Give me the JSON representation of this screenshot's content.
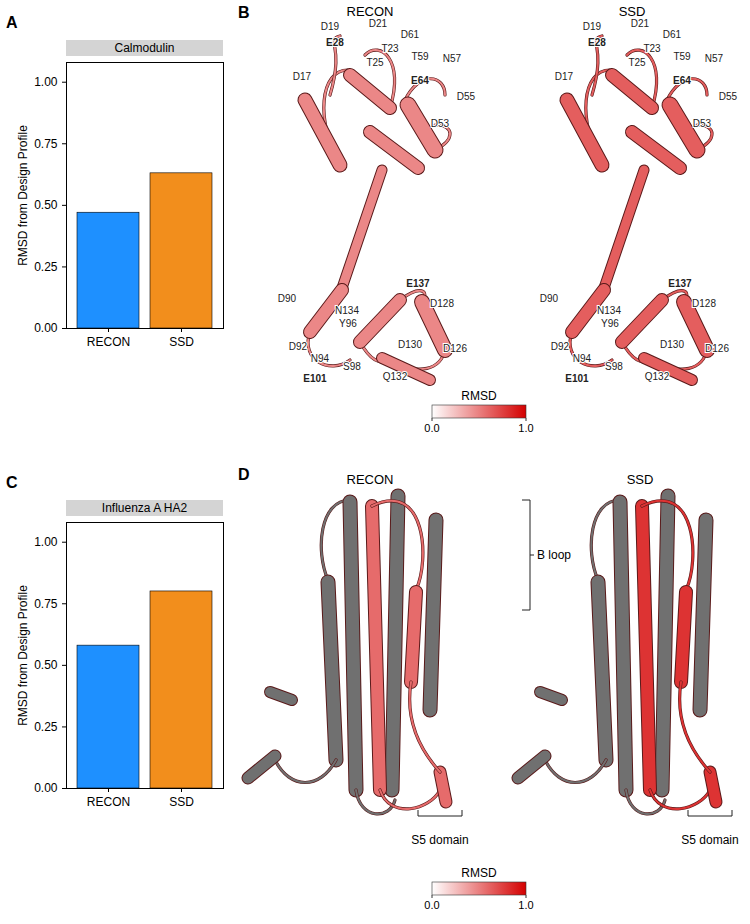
{
  "chart_data": [
    {
      "type": "bar",
      "panel": "A",
      "title": "Calmodulin",
      "y_label": "RMSD from Design Profile",
      "categories": [
        "RECON",
        "SSD"
      ],
      "values": [
        0.47,
        0.63
      ],
      "colors": [
        "#1e90ff",
        "#f28e1c"
      ],
      "ylim": [
        0,
        1.08
      ],
      "yticks": [
        {
          "value": 0,
          "label": "0.00"
        },
        {
          "value": 0.25,
          "label": "0.25"
        },
        {
          "value": 0.5,
          "label": "0.50"
        },
        {
          "value": 0.75,
          "label": "0.75"
        },
        {
          "value": 1,
          "label": "1.00"
        }
      ]
    },
    {
      "type": "bar",
      "panel": "C",
      "title": "Influenza A HA2",
      "y_label": "RMSD from Design Profile",
      "categories": [
        "RECON",
        "SSD"
      ],
      "values": [
        0.58,
        0.8
      ],
      "colors": [
        "#1e90ff",
        "#f28e1c"
      ],
      "ylim": [
        0,
        1.08
      ],
      "yticks": [
        {
          "value": 0,
          "label": "0.00"
        },
        {
          "value": 0.25,
          "label": "0.25"
        },
        {
          "value": 0.5,
          "label": "0.50"
        },
        {
          "value": 0.75,
          "label": "0.75"
        },
        {
          "value": 1,
          "label": "1.00"
        }
      ]
    }
  ],
  "structures": [
    {
      "panel": "B",
      "titles": [
        "RECON",
        "SSD"
      ],
      "residue_labels": [
        {
          "label": "D19",
          "bold": false
        },
        {
          "label": "D21",
          "bold": false
        },
        {
          "label": "D61",
          "bold": false
        },
        {
          "label": "E28",
          "bold": true
        },
        {
          "label": "T23",
          "bold": false
        },
        {
          "label": "T59",
          "bold": false
        },
        {
          "label": "T25",
          "bold": false
        },
        {
          "label": "N57",
          "bold": false
        },
        {
          "label": "D17",
          "bold": false
        },
        {
          "label": "E64",
          "bold": true
        },
        {
          "label": "D55",
          "bold": false
        },
        {
          "label": "D53",
          "bold": false
        },
        {
          "label": "E137",
          "bold": true
        },
        {
          "label": "D90",
          "bold": false
        },
        {
          "label": "N134",
          "bold": false
        },
        {
          "label": "Y96",
          "bold": false
        },
        {
          "label": "D128",
          "bold": false
        },
        {
          "label": "D92",
          "bold": false
        },
        {
          "label": "N94",
          "bold": false
        },
        {
          "label": "D130",
          "bold": false
        },
        {
          "label": "D126",
          "bold": false
        },
        {
          "label": "E101",
          "bold": true
        },
        {
          "label": "S98",
          "bold": false
        },
        {
          "label": "Q132",
          "bold": false
        }
      ],
      "colorbar": {
        "title": "RMSD",
        "range": [
          0,
          1
        ],
        "ticks": [
          {
            "value": 0,
            "label": "0.0"
          },
          {
            "value": 1,
            "label": "1.0"
          }
        ]
      }
    },
    {
      "panel": "D",
      "titles": [
        "RECON",
        "SSD"
      ],
      "annotations": [
        "B loop",
        "S5 domain"
      ],
      "colorbar": {
        "title": "RMSD",
        "range": [
          0,
          1
        ],
        "ticks": [
          {
            "value": 0,
            "label": "0.0"
          },
          {
            "value": 1,
            "label": "1.0"
          }
        ]
      }
    }
  ]
}
